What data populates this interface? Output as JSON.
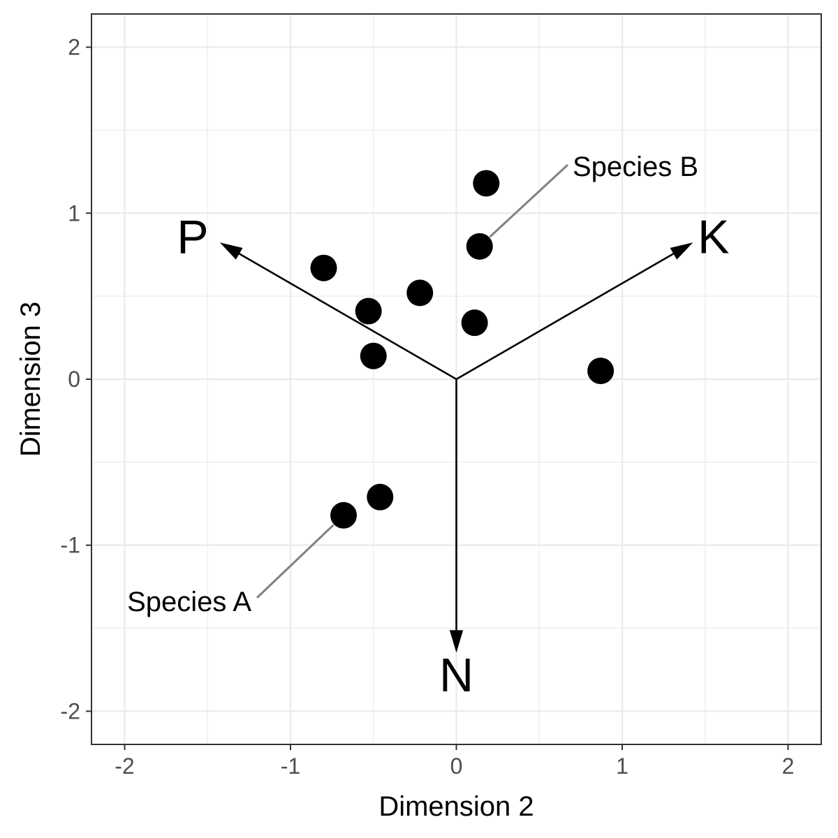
{
  "chart_data": {
    "type": "scatter",
    "xlabel": "Dimension 2",
    "ylabel": "Dimension 3",
    "xlim": [
      -2.2,
      2.2
    ],
    "ylim": [
      -2.2,
      2.2
    ],
    "x_ticks": [
      -2,
      -1,
      0,
      1,
      2
    ],
    "y_ticks": [
      -2,
      -1,
      0,
      1,
      2
    ],
    "x_tick_labels": [
      "-2",
      "-1",
      "0",
      "1",
      "2"
    ],
    "y_tick_labels": [
      "-2",
      "-1",
      "0",
      "1",
      "2"
    ],
    "grid": true,
    "points": [
      {
        "x": 0.18,
        "y": 1.18
      },
      {
        "x": 0.14,
        "y": 0.8
      },
      {
        "x": -0.8,
        "y": 0.67
      },
      {
        "x": -0.22,
        "y": 0.52
      },
      {
        "x": -0.53,
        "y": 0.41
      },
      {
        "x": 0.11,
        "y": 0.34
      },
      {
        "x": -0.5,
        "y": 0.14
      },
      {
        "x": 0.87,
        "y": 0.05
      },
      {
        "x": -0.46,
        "y": -0.71
      },
      {
        "x": -0.68,
        "y": -0.82
      }
    ],
    "vectors": [
      {
        "label": "P",
        "x": -1.42,
        "y": 0.82
      },
      {
        "label": "K",
        "x": 1.42,
        "y": 0.82
      },
      {
        "label": "N",
        "x": 0.0,
        "y": -1.64
      }
    ],
    "annotations": [
      {
        "text": "Species A",
        "point_index": 9
      },
      {
        "text": "Species B",
        "point_index": 1
      }
    ]
  }
}
